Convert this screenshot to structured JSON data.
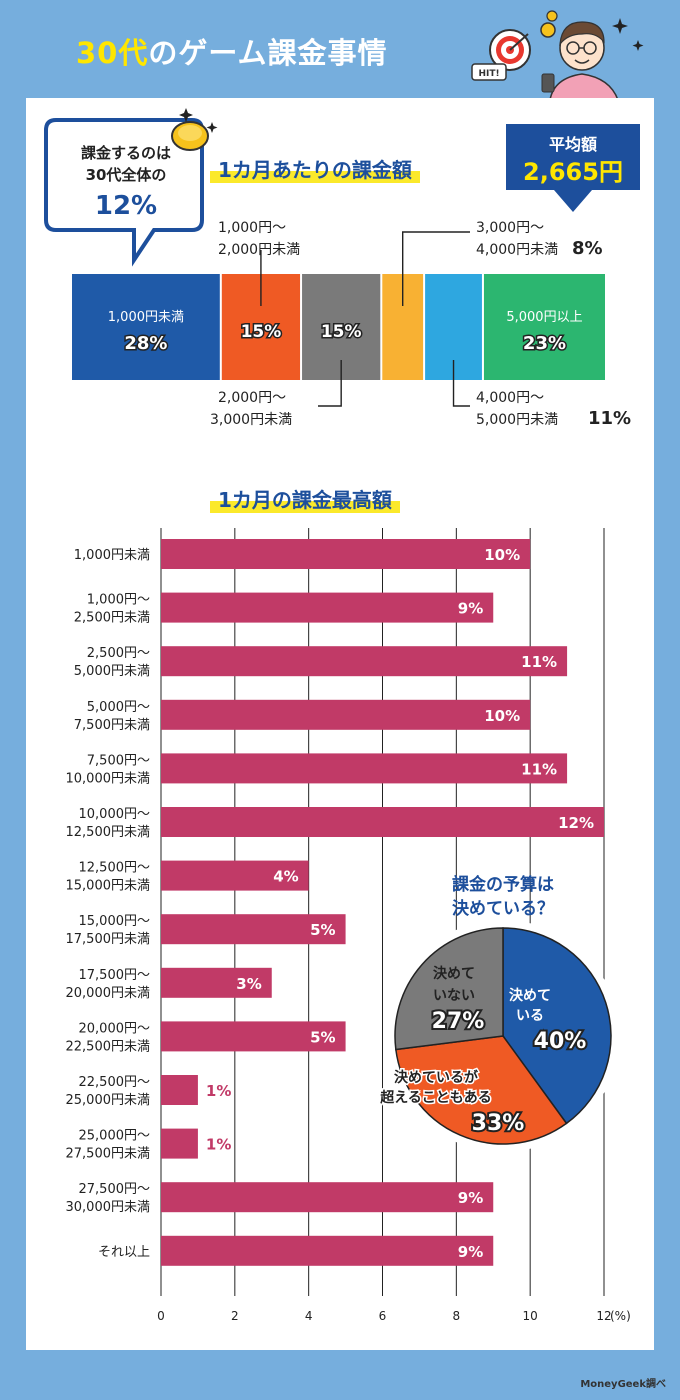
{
  "title": {
    "accent": "30代",
    "rest": "のゲーム課金事情"
  },
  "callout": {
    "line1": "課金するのは",
    "line2": "30代全体の",
    "value": "12%"
  },
  "hit_label": "HIT!",
  "average": {
    "label": "平均額",
    "value": "2,665円"
  },
  "section1_title": "1カ月あたりの課金額",
  "section2_title": "1カ月の課金最高額",
  "source": "MoneyGeek調べ",
  "chart_data": [
    {
      "type": "bar",
      "orientation": "stacked-horizontal",
      "title": "1カ月あたりの課金額",
      "categories": [
        "1,000円未満",
        "1,000円～2,000円未満",
        "2,000円～3,000円未満",
        "3,000円～4,000円未満",
        "4,000円～5,000円未満",
        "5,000円以上"
      ],
      "values": [
        28,
        15,
        15,
        8,
        11,
        23
      ],
      "labels": [
        "28%",
        "15%",
        "15%",
        "8%",
        "11%",
        "23%"
      ],
      "colors": [
        "#1f5aa8",
        "#ef5a24",
        "#7a7a7a",
        "#f8b133",
        "#2ea7e0",
        "#2cb670"
      ],
      "callouts": {
        "c1": {
          "line1": "1,000円～",
          "line2": "2,000円未満"
        },
        "c2": {
          "line1": "2,000円～",
          "line2": "3,000円未満"
        },
        "c3": {
          "line1": "3,000円～",
          "line2": "4,000円未満"
        },
        "c4": {
          "line1": "4,000円～",
          "line2": "5,000円未満"
        }
      },
      "inner_labels": {
        "first": "1,000円未満",
        "last": "5,000円以上"
      }
    },
    {
      "type": "bar",
      "orientation": "horizontal",
      "title": "1カ月の課金最高額",
      "categories": [
        [
          "1,000円未満"
        ],
        [
          "1,000円～",
          "2,500円未満"
        ],
        [
          "2,500円～",
          "5,000円未満"
        ],
        [
          "5,000円～",
          "7,500円未満"
        ],
        [
          "7,500円～",
          "10,000円未満"
        ],
        [
          "10,000円～",
          "12,500円未満"
        ],
        [
          "12,500円～",
          "15,000円未満"
        ],
        [
          "15,000円～",
          "17,500円未満"
        ],
        [
          "17,500円～",
          "20,000円未満"
        ],
        [
          "20,000円～",
          "22,500円未満"
        ],
        [
          "22,500円～",
          "25,000円未満"
        ],
        [
          "25,000円～",
          "27,500円未満"
        ],
        [
          "27,500円～",
          "30,000円未満"
        ],
        [
          "それ以上"
        ]
      ],
      "values": [
        10,
        9,
        11,
        10,
        11,
        12,
        4,
        5,
        3,
        5,
        1,
        1,
        9,
        9
      ],
      "xlim": [
        0,
        12
      ],
      "xticks": [
        0,
        2,
        4,
        6,
        8,
        10,
        12
      ],
      "xunit": "(%)",
      "grid": true,
      "bar_color": "#c13a67"
    },
    {
      "type": "pie",
      "title_lines": [
        "課金の予算は",
        "決めている？"
      ],
      "slices": [
        {
          "lines": [
            "決めて",
            "いる"
          ],
          "value": 40,
          "label": "40%",
          "color": "#1f5aa8"
        },
        {
          "lines": [
            "決めているが",
            "超えることもある"
          ],
          "value": 33,
          "label": "33%",
          "color": "#ef5a24"
        },
        {
          "lines": [
            "決めて",
            "いない"
          ],
          "value": 27,
          "label": "27%",
          "color": "#7a7a7a"
        }
      ]
    }
  ]
}
